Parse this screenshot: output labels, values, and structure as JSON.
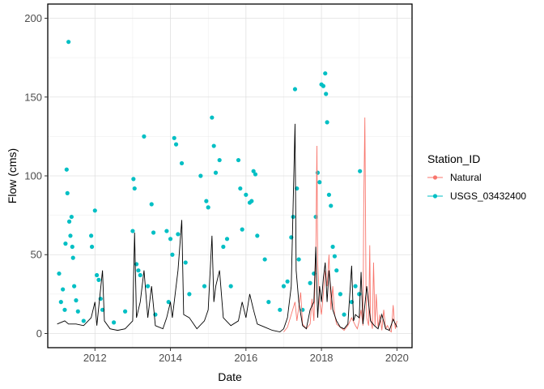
{
  "chart_data": {
    "type": "scatter",
    "xlabel": "Date",
    "ylabel": "Flow (cms)",
    "xlim": [
      2010.75,
      2020.4
    ],
    "ylim": [
      -9,
      209
    ],
    "x_ticks": [
      2012,
      2014,
      2016,
      2018,
      2020
    ],
    "y_ticks": [
      0,
      50,
      100,
      150,
      200
    ],
    "grid": true,
    "legend": {
      "title": "Station_ID",
      "position": "right",
      "entries": [
        {
          "name": "Natural",
          "color": "#F8766D"
        },
        {
          "name": "USGS_03432400",
          "color": "#00BFC4"
        }
      ]
    },
    "observed_line_color": "#000000",
    "series": [
      {
        "name": "Natural",
        "color": "#F8766D",
        "mark": "line",
        "points": [
          [
            2017.0,
            1
          ],
          [
            2017.1,
            4
          ],
          [
            2017.2,
            12
          ],
          [
            2017.3,
            20
          ],
          [
            2017.35,
            8
          ],
          [
            2017.45,
            26
          ],
          [
            2017.5,
            6
          ],
          [
            2017.6,
            3
          ],
          [
            2017.7,
            6
          ],
          [
            2017.75,
            22
          ],
          [
            2017.8,
            8
          ],
          [
            2017.85,
            48
          ],
          [
            2017.88,
            119
          ],
          [
            2017.9,
            45
          ],
          [
            2017.95,
            20
          ],
          [
            2018.0,
            12
          ],
          [
            2018.05,
            25
          ],
          [
            2018.1,
            40
          ],
          [
            2018.15,
            30
          ],
          [
            2018.2,
            50
          ],
          [
            2018.25,
            15
          ],
          [
            2018.3,
            30
          ],
          [
            2018.35,
            12
          ],
          [
            2018.4,
            6
          ],
          [
            2018.5,
            4
          ],
          [
            2018.6,
            2
          ],
          [
            2018.7,
            5
          ],
          [
            2018.8,
            10
          ],
          [
            2018.9,
            5
          ],
          [
            2018.95,
            3
          ],
          [
            2019.0,
            8
          ],
          [
            2019.05,
            15
          ],
          [
            2019.1,
            5
          ],
          [
            2019.12,
            80
          ],
          [
            2019.15,
            137
          ],
          [
            2019.18,
            30
          ],
          [
            2019.2,
            10
          ],
          [
            2019.25,
            5
          ],
          [
            2019.28,
            56
          ],
          [
            2019.3,
            10
          ],
          [
            2019.35,
            3
          ],
          [
            2019.38,
            45
          ],
          [
            2019.42,
            5
          ],
          [
            2019.45,
            25
          ],
          [
            2019.5,
            4
          ],
          [
            2019.55,
            12
          ],
          [
            2019.6,
            2
          ],
          [
            2019.65,
            15
          ],
          [
            2019.7,
            3
          ],
          [
            2019.75,
            5
          ],
          [
            2019.8,
            2
          ],
          [
            2019.85,
            1
          ],
          [
            2019.9,
            18
          ],
          [
            2019.93,
            8
          ],
          [
            2019.96,
            3
          ],
          [
            2020.0,
            8
          ]
        ]
      },
      {
        "name": "USGS_03432400",
        "color": "#00BFC4",
        "mark": "points",
        "points": [
          [
            2011.05,
            38
          ],
          [
            2011.1,
            20
          ],
          [
            2011.15,
            28
          ],
          [
            2011.2,
            15
          ],
          [
            2011.22,
            57
          ],
          [
            2011.25,
            104
          ],
          [
            2011.27,
            89
          ],
          [
            2011.3,
            185
          ],
          [
            2011.32,
            71
          ],
          [
            2011.35,
            62
          ],
          [
            2011.38,
            74
          ],
          [
            2011.4,
            55
          ],
          [
            2011.42,
            48
          ],
          [
            2011.45,
            30
          ],
          [
            2011.5,
            21
          ],
          [
            2011.55,
            14
          ],
          [
            2011.7,
            8
          ],
          [
            2011.9,
            62
          ],
          [
            2011.92,
            55
          ],
          [
            2012.0,
            78
          ],
          [
            2012.05,
            37
          ],
          [
            2012.1,
            34
          ],
          [
            2012.15,
            22
          ],
          [
            2012.2,
            15
          ],
          [
            2012.5,
            7
          ],
          [
            2012.8,
            14
          ],
          [
            2013.0,
            65
          ],
          [
            2013.02,
            98
          ],
          [
            2013.05,
            92
          ],
          [
            2013.1,
            44
          ],
          [
            2013.15,
            40
          ],
          [
            2013.2,
            37
          ],
          [
            2013.3,
            125
          ],
          [
            2013.4,
            30
          ],
          [
            2013.5,
            82
          ],
          [
            2013.55,
            64
          ],
          [
            2013.6,
            12
          ],
          [
            2013.9,
            65
          ],
          [
            2013.95,
            20
          ],
          [
            2014.0,
            60
          ],
          [
            2014.05,
            50
          ],
          [
            2014.1,
            124
          ],
          [
            2014.15,
            120
          ],
          [
            2014.2,
            63
          ],
          [
            2014.3,
            108
          ],
          [
            2014.4,
            45
          ],
          [
            2014.5,
            25
          ],
          [
            2014.8,
            100
          ],
          [
            2014.9,
            30
          ],
          [
            2014.95,
            84
          ],
          [
            2015.0,
            80
          ],
          [
            2015.1,
            137
          ],
          [
            2015.15,
            119
          ],
          [
            2015.2,
            102
          ],
          [
            2015.3,
            110
          ],
          [
            2015.4,
            55
          ],
          [
            2015.5,
            60
          ],
          [
            2015.6,
            30
          ],
          [
            2015.8,
            110
          ],
          [
            2015.85,
            92
          ],
          [
            2015.9,
            66
          ],
          [
            2016.0,
            88
          ],
          [
            2016.1,
            83
          ],
          [
            2016.15,
            84
          ],
          [
            2016.2,
            103
          ],
          [
            2016.25,
            101
          ],
          [
            2016.3,
            62
          ],
          [
            2016.5,
            47
          ],
          [
            2016.6,
            20
          ],
          [
            2016.9,
            15
          ],
          [
            2017.0,
            30
          ],
          [
            2017.1,
            33
          ],
          [
            2017.2,
            61
          ],
          [
            2017.25,
            74
          ],
          [
            2017.3,
            155
          ],
          [
            2017.35,
            92
          ],
          [
            2017.4,
            47
          ],
          [
            2017.5,
            15
          ],
          [
            2017.7,
            32
          ],
          [
            2017.8,
            38
          ],
          [
            2017.85,
            74
          ],
          [
            2017.9,
            102
          ],
          [
            2017.95,
            96
          ],
          [
            2018.0,
            158
          ],
          [
            2018.05,
            157
          ],
          [
            2018.1,
            165
          ],
          [
            2018.12,
            152
          ],
          [
            2018.15,
            134
          ],
          [
            2018.2,
            88
          ],
          [
            2018.25,
            81
          ],
          [
            2018.3,
            55
          ],
          [
            2018.35,
            49
          ],
          [
            2018.4,
            40
          ],
          [
            2018.5,
            25
          ],
          [
            2018.6,
            12
          ],
          [
            2018.8,
            20
          ],
          [
            2018.9,
            30
          ],
          [
            2019.0,
            25
          ],
          [
            2019.02,
            103
          ]
        ]
      },
      {
        "name": "USGS_03432400 (line)",
        "color": "#000000",
        "mark": "line",
        "points": [
          [
            2011.0,
            6
          ],
          [
            2011.2,
            8
          ],
          [
            2011.3,
            6
          ],
          [
            2011.5,
            6
          ],
          [
            2011.7,
            5
          ],
          [
            2011.9,
            10
          ],
          [
            2012.0,
            20
          ],
          [
            2012.05,
            5
          ],
          [
            2012.2,
            40
          ],
          [
            2012.25,
            8
          ],
          [
            2012.4,
            3
          ],
          [
            2012.6,
            2
          ],
          [
            2012.8,
            3
          ],
          [
            2013.0,
            8
          ],
          [
            2013.05,
            64
          ],
          [
            2013.1,
            10
          ],
          [
            2013.2,
            20
          ],
          [
            2013.3,
            40
          ],
          [
            2013.4,
            10
          ],
          [
            2013.5,
            30
          ],
          [
            2013.6,
            5
          ],
          [
            2013.8,
            3
          ],
          [
            2013.9,
            10
          ],
          [
            2014.0,
            20
          ],
          [
            2014.05,
            10
          ],
          [
            2014.2,
            40
          ],
          [
            2014.3,
            72
          ],
          [
            2014.35,
            12
          ],
          [
            2014.5,
            10
          ],
          [
            2014.7,
            3
          ],
          [
            2014.9,
            8
          ],
          [
            2015.0,
            15
          ],
          [
            2015.1,
            62
          ],
          [
            2015.15,
            20
          ],
          [
            2015.2,
            30
          ],
          [
            2015.3,
            40
          ],
          [
            2015.4,
            10
          ],
          [
            2015.6,
            5
          ],
          [
            2015.8,
            8
          ],
          [
            2015.9,
            20
          ],
          [
            2016.0,
            10
          ],
          [
            2016.1,
            25
          ],
          [
            2016.2,
            15
          ],
          [
            2016.3,
            6
          ],
          [
            2016.5,
            4
          ],
          [
            2016.7,
            2
          ],
          [
            2016.9,
            1
          ],
          [
            2017.0,
            3
          ],
          [
            2017.1,
            10
          ],
          [
            2017.2,
            30
          ],
          [
            2017.3,
            133
          ],
          [
            2017.33,
            40
          ],
          [
            2017.4,
            20
          ],
          [
            2017.5,
            5
          ],
          [
            2017.6,
            3
          ],
          [
            2017.7,
            15
          ],
          [
            2017.8,
            20
          ],
          [
            2017.85,
            55
          ],
          [
            2017.9,
            10
          ],
          [
            2017.95,
            30
          ],
          [
            2018.0,
            20
          ],
          [
            2018.05,
            35
          ],
          [
            2018.1,
            45
          ],
          [
            2018.15,
            20
          ],
          [
            2018.2,
            40
          ],
          [
            2018.3,
            15
          ],
          [
            2018.4,
            8
          ],
          [
            2018.5,
            4
          ],
          [
            2018.6,
            3
          ],
          [
            2018.7,
            6
          ],
          [
            2018.8,
            43
          ],
          [
            2018.85,
            8
          ],
          [
            2018.9,
            12
          ],
          [
            2019.0,
            10
          ],
          [
            2019.05,
            39
          ],
          [
            2019.1,
            6
          ],
          [
            2019.2,
            30
          ],
          [
            2019.3,
            8
          ],
          [
            2019.4,
            5
          ],
          [
            2019.5,
            3
          ],
          [
            2019.6,
            12
          ],
          [
            2019.7,
            3
          ],
          [
            2019.8,
            2
          ],
          [
            2019.9,
            9
          ],
          [
            2020.0,
            4
          ]
        ]
      }
    ]
  }
}
